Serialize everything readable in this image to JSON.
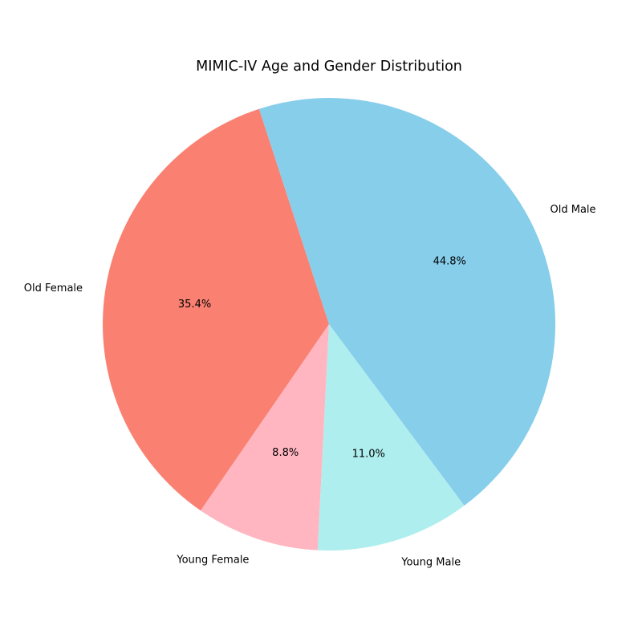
{
  "chart_data": {
    "type": "pie",
    "title": "MIMIC-IV Age and Gender Distribution",
    "slices": [
      {
        "label": "Old Female",
        "value": 35.4,
        "pct_label": "35.4%",
        "color": "#FA8072"
      },
      {
        "label": "Young Female",
        "value": 8.8,
        "pct_label": "8.8%",
        "color": "#FFB6C1"
      },
      {
        "label": "Young Male",
        "value": 11.0,
        "pct_label": "11.0%",
        "color": "#AFEEEE"
      },
      {
        "label": "Old Male",
        "value": 44.8,
        "pct_label": "44.8%",
        "color": "#87CEEB"
      }
    ],
    "legend": "none",
    "grid": false
  }
}
